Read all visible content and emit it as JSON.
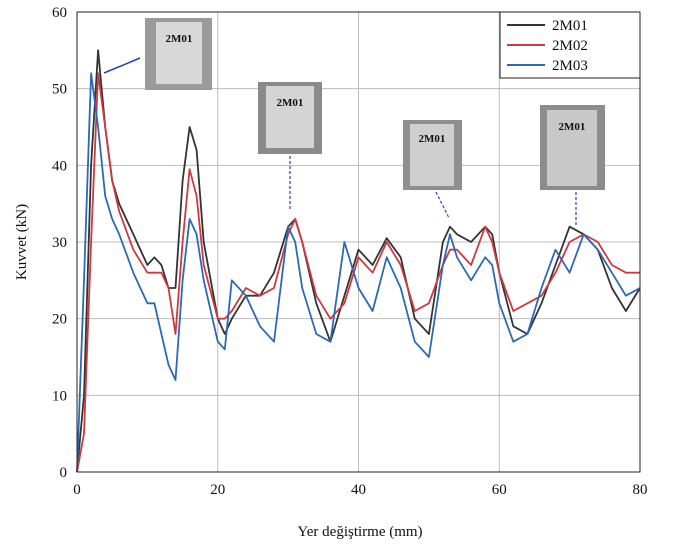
{
  "chart_data": {
    "type": "line",
    "xlabel": "Yer değiştirme (mm)",
    "ylabel": "Kuvvet (kN)",
    "x": [
      0,
      1,
      2,
      3,
      4,
      5,
      6,
      8,
      10,
      11,
      12,
      13,
      14,
      15,
      16,
      17,
      18,
      20,
      21,
      22,
      24,
      26,
      28,
      30,
      31,
      32,
      34,
      36,
      38,
      40,
      42,
      44,
      46,
      48,
      50,
      52,
      53,
      54,
      56,
      58,
      59,
      60,
      62,
      64,
      66,
      68,
      70,
      72,
      74,
      76,
      78,
      80
    ],
    "series": [
      {
        "name": "2M01",
        "color": "#333333",
        "values": [
          0,
          10,
          40,
          55,
          45,
          38,
          35,
          31,
          27,
          28,
          27,
          24,
          24,
          38,
          45,
          42,
          30,
          20,
          18,
          20,
          23,
          23,
          26,
          32,
          33,
          30,
          22,
          17,
          23,
          29,
          27,
          30.5,
          28,
          20,
          18,
          30,
          32,
          31,
          30,
          32,
          31,
          26,
          19,
          18,
          22,
          27,
          32,
          31,
          29,
          24,
          21,
          24
        ]
      },
      {
        "name": "2M02",
        "color": "#d0383f",
        "values": [
          0,
          5,
          30,
          52,
          45,
          38,
          34,
          29,
          26,
          26,
          26,
          24,
          18,
          30,
          39.5,
          36,
          27,
          20,
          20,
          21,
          24,
          23,
          24,
          31,
          33,
          30,
          23,
          20,
          22,
          28,
          26,
          30,
          27,
          21,
          22,
          27,
          29,
          29,
          27,
          32,
          30,
          26,
          21,
          22,
          23,
          26,
          30,
          31,
          30,
          27,
          26,
          26
        ]
      },
      {
        "name": "2M03",
        "color": "#2a6ab5",
        "values": [
          0,
          25,
          52,
          45,
          36,
          33,
          31,
          26,
          22,
          22,
          18,
          14,
          12,
          25,
          33,
          31,
          25,
          17,
          16,
          25,
          23,
          19,
          17,
          32,
          30,
          24,
          18,
          17,
          30,
          24,
          21,
          28,
          24,
          17,
          15,
          27,
          31,
          28,
          25,
          28,
          27,
          22,
          17,
          18,
          24,
          29,
          26,
          31,
          29,
          26,
          23,
          24
        ]
      }
    ],
    "xlim": [
      0,
      80
    ],
    "xticks": [
      0,
      20,
      40,
      60,
      80
    ],
    "ylim": [
      0,
      60
    ],
    "yticks": [
      0,
      10,
      20,
      30,
      40,
      50,
      60
    ],
    "grid": true,
    "annotations": [
      "2M01",
      "2M01",
      "2M01",
      "2M01"
    ]
  }
}
